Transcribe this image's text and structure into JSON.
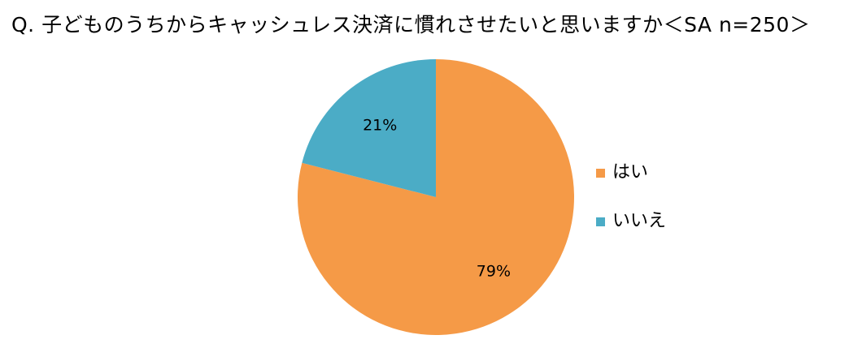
{
  "title": "Q. 子どものうちからキャッシュレス決済に慣れさせたいと思いますか＜SA n=250＞",
  "chart_data": {
    "type": "pie",
    "title": "Q. 子どものうちからキャッシュレス決済に慣れさせたいと思いますか＜SA n=250＞",
    "slices": [
      {
        "label": "はい",
        "value": 79,
        "value_label": "79%",
        "color": "#F59A47"
      },
      {
        "label": "いいえ",
        "value": 21,
        "value_label": "21%",
        "color": "#4BACC6"
      }
    ],
    "start": "12 o'clock",
    "direction": "clockwise",
    "legend_position": "right"
  }
}
